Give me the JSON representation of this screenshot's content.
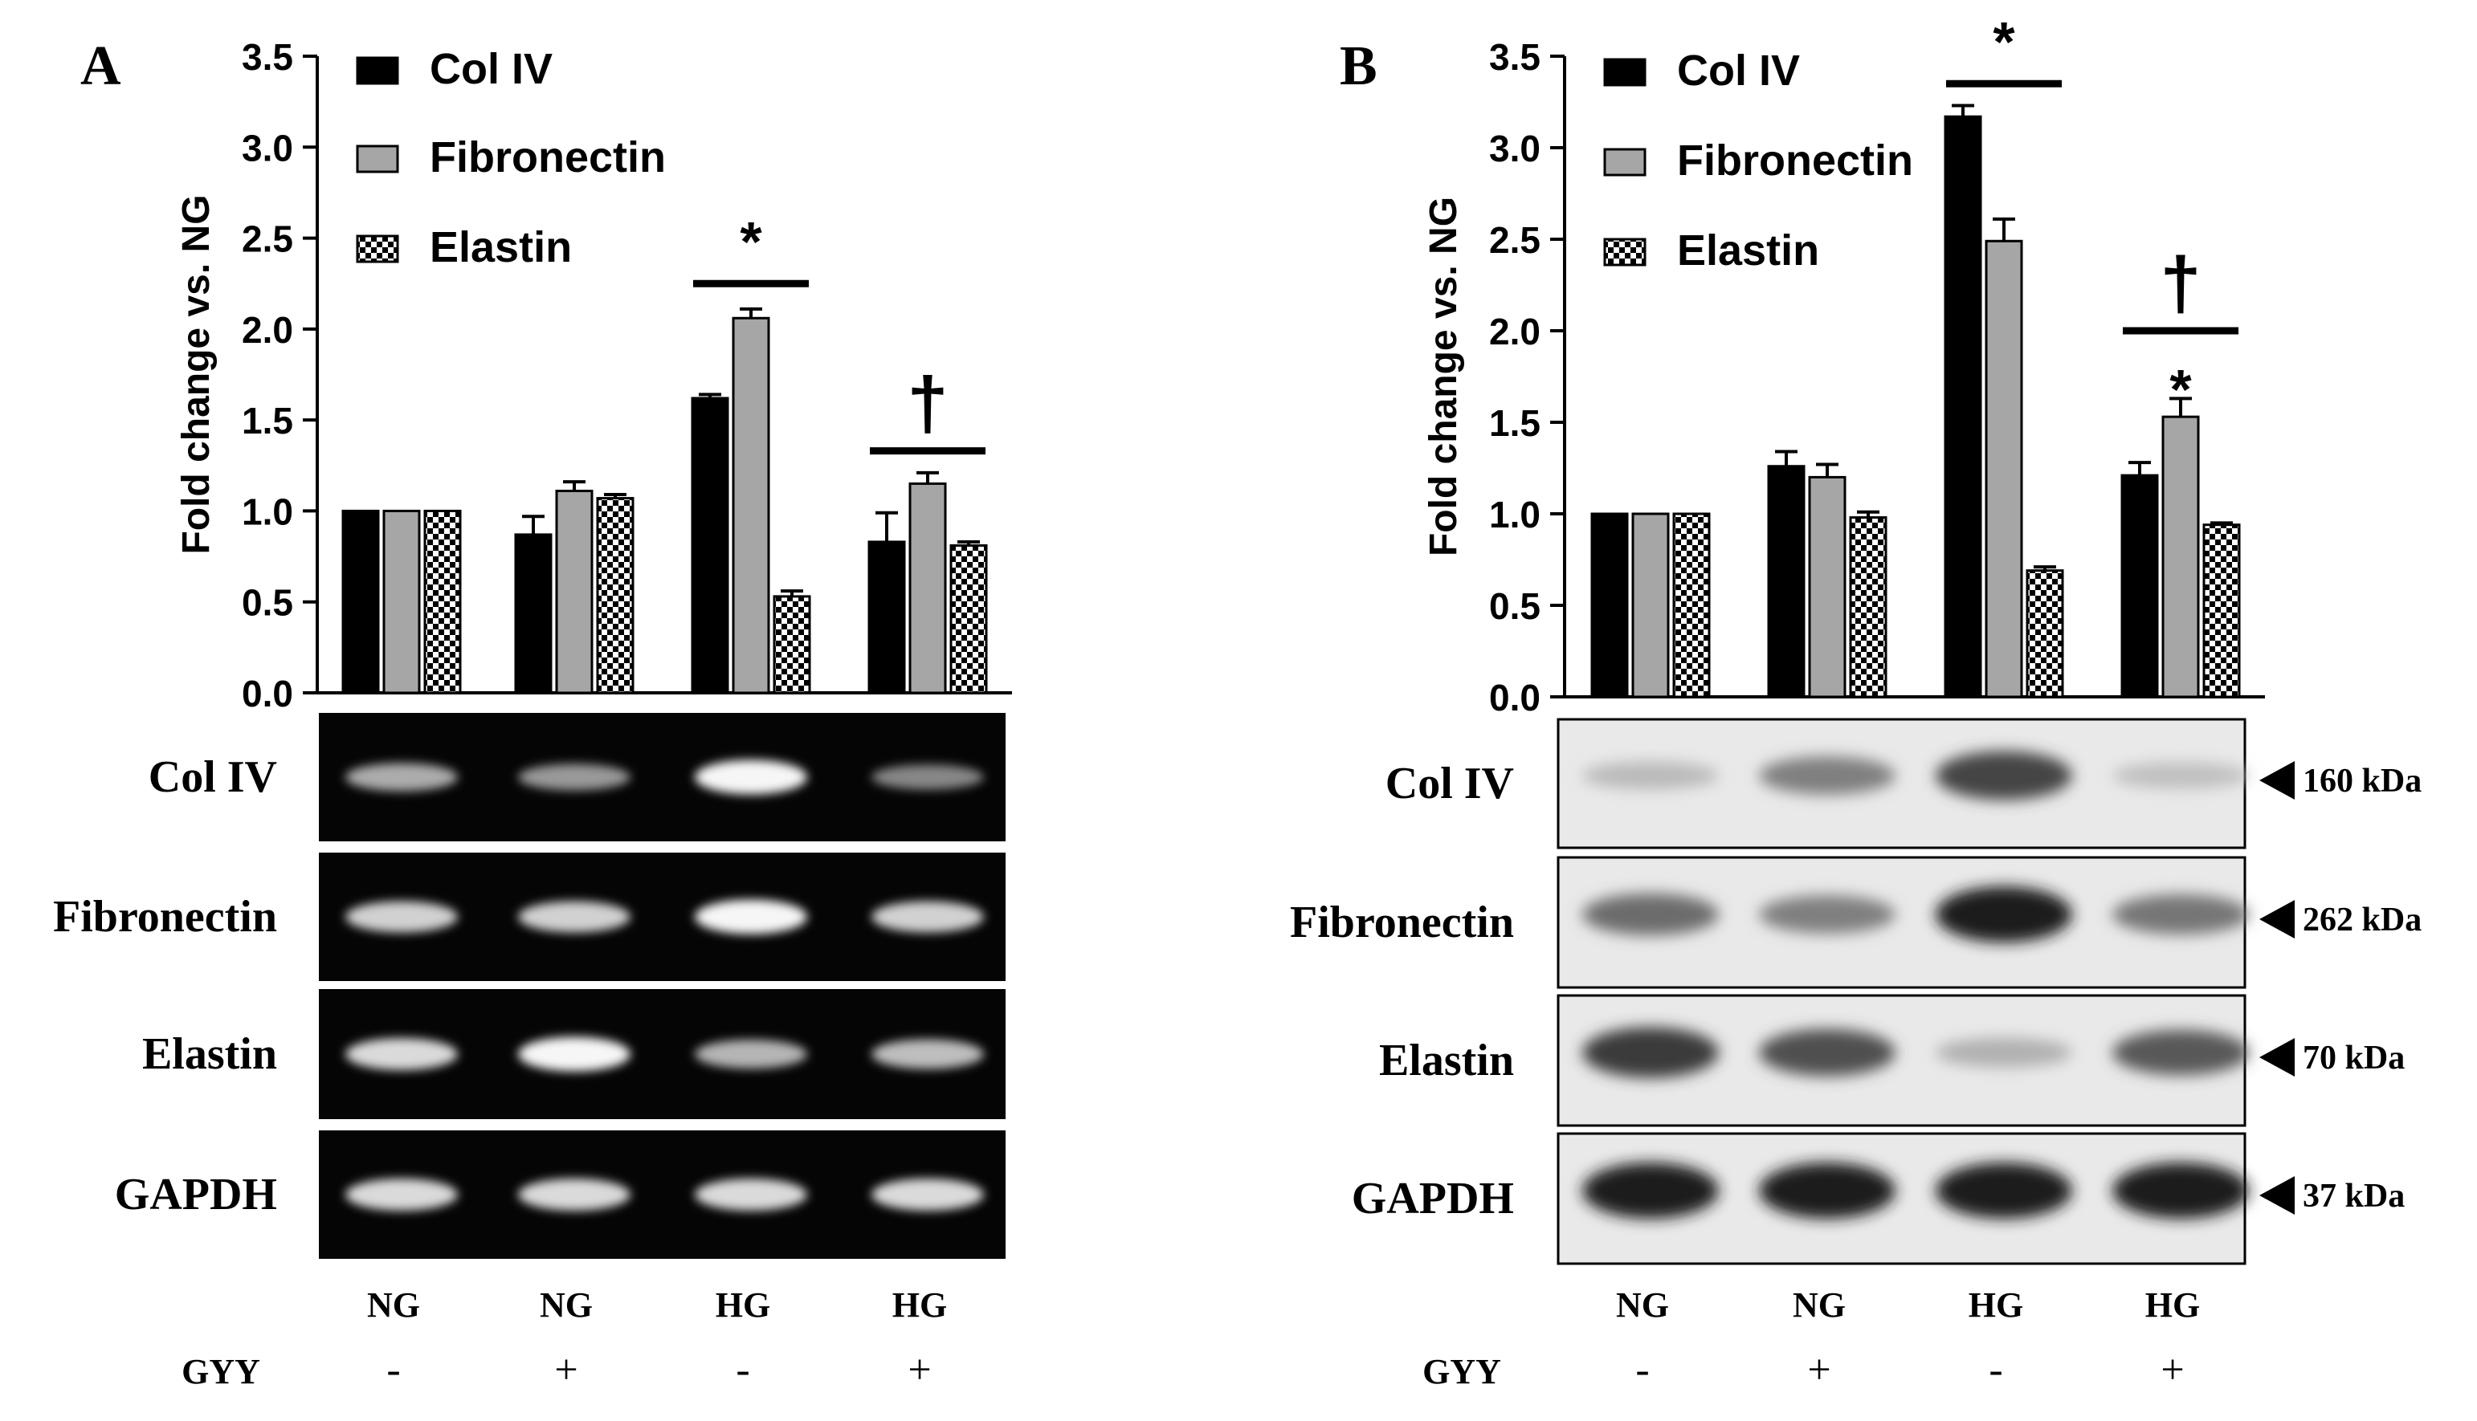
{
  "chart_data": [
    {
      "type": "bar",
      "panel_label": "A",
      "ylabel": "Fold change vs. NG",
      "ylim": [
        0,
        3.5
      ],
      "yticks": [
        "0.0",
        "0.5",
        "1.0",
        "1.5",
        "2.0",
        "2.5",
        "3.0",
        "3.5"
      ],
      "categories": [
        "NG -",
        "NG +",
        "HG -",
        "HG +"
      ],
      "glucose_labels": [
        "NG",
        "NG",
        "HG",
        "HG"
      ],
      "treatment_label": "GYY",
      "treatment_values": [
        "-",
        "+",
        "-",
        "+"
      ],
      "series": [
        {
          "name": "Col IV",
          "values": [
            1.0,
            0.87,
            1.62,
            0.83
          ],
          "errors": [
            0.0,
            0.1,
            0.02,
            0.16
          ],
          "fill": "#000000"
        },
        {
          "name": "Fibronectin",
          "values": [
            1.0,
            1.11,
            2.06,
            1.15
          ],
          "errors": [
            0.0,
            0.05,
            0.05,
            0.06
          ],
          "fill": "#a6a6a6"
        },
        {
          "name": "Elastin",
          "values": [
            1.0,
            1.07,
            0.53,
            0.81
          ],
          "errors": [
            0.0,
            0.02,
            0.03,
            0.02
          ],
          "fill": "checker"
        }
      ],
      "annotations": [
        {
          "group": 2,
          "symbol": "*",
          "bar_at": 2.25
        },
        {
          "group": 3,
          "symbol": "†",
          "bar_at": 1.33
        }
      ],
      "legend_position": "top-left",
      "blot_rows": [
        {
          "label": "Col IV",
          "band_intensity": [
            0.55,
            0.45,
            0.95,
            0.35
          ]
        },
        {
          "label": "Fibronectin",
          "band_intensity": [
            0.75,
            0.75,
            0.95,
            0.75
          ]
        },
        {
          "label": "Elastin",
          "band_intensity": [
            0.8,
            0.95,
            0.6,
            0.65
          ]
        },
        {
          "label": "GAPDH",
          "band_intensity": [
            0.8,
            0.8,
            0.8,
            0.8
          ]
        }
      ]
    },
    {
      "type": "bar",
      "panel_label": "B",
      "ylabel": "Fold change vs. NG",
      "ylim": [
        0,
        3.5
      ],
      "yticks": [
        "0.0",
        "0.5",
        "1.0",
        "1.5",
        "2.0",
        "2.5",
        "3.0",
        "3.5"
      ],
      "categories": [
        "NG -",
        "NG +",
        "HG -",
        "HG +"
      ],
      "glucose_labels": [
        "NG",
        "NG",
        "HG",
        "HG"
      ],
      "treatment_label": "GYY",
      "treatment_values": [
        "-",
        "+",
        "-",
        "+"
      ],
      "series": [
        {
          "name": "Col IV",
          "values": [
            1.0,
            1.26,
            3.17,
            1.21
          ],
          "errors": [
            0.0,
            0.08,
            0.06,
            0.07
          ],
          "fill": "#000000"
        },
        {
          "name": "Fibronectin",
          "values": [
            1.0,
            1.2,
            2.49,
            1.53
          ],
          "errors": [
            0.0,
            0.07,
            0.12,
            0.1
          ],
          "fill": "#a6a6a6"
        },
        {
          "name": "Elastin",
          "values": [
            1.0,
            0.98,
            0.69,
            0.94
          ],
          "errors": [
            0.0,
            0.03,
            0.02,
            0.01
          ],
          "fill": "checker"
        }
      ],
      "annotations": [
        {
          "group": 2,
          "symbol": "*",
          "bar_at": 3.35
        },
        {
          "group": 3,
          "symbol": "†",
          "bar_at": 2.0
        },
        {
          "group": 3,
          "symbol": "*",
          "series": 1,
          "above_value": 1.75
        }
      ],
      "legend_position": "top-left",
      "blot_rows": [
        {
          "label": "Col IV",
          "band_intensity": [
            0.15,
            0.45,
            0.75,
            0.12
          ],
          "kda": "160 kDa"
        },
        {
          "label": "Fibronectin",
          "band_intensity": [
            0.55,
            0.45,
            0.95,
            0.5
          ],
          "kda": "262 kDa"
        },
        {
          "label": "Elastin",
          "band_intensity": [
            0.8,
            0.7,
            0.2,
            0.65
          ],
          "kda": "70 kDa"
        },
        {
          "label": "GAPDH",
          "band_intensity": [
            0.95,
            0.95,
            0.95,
            0.95
          ],
          "kda": "37 kDa"
        }
      ]
    }
  ]
}
